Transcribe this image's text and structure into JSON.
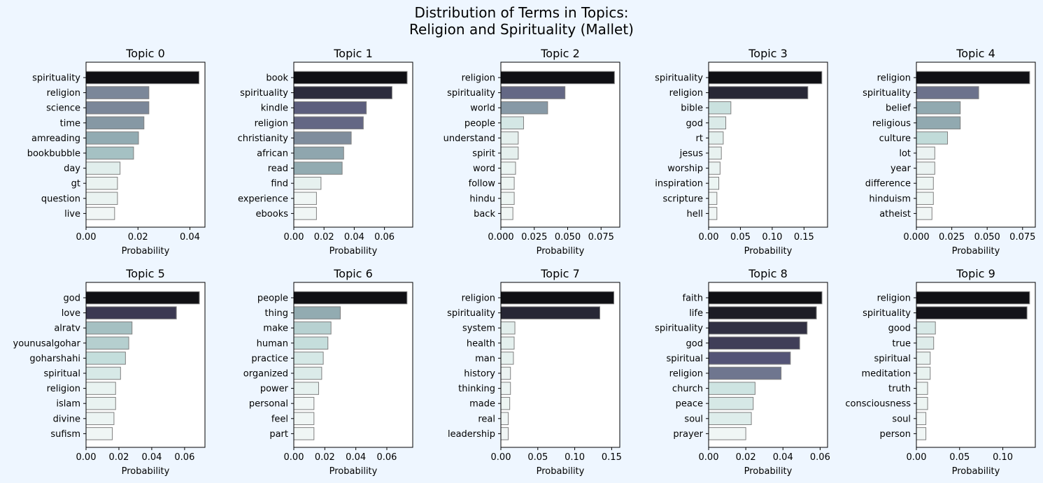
{
  "figure": {
    "title_line1": "Distribution of Terms in Topics:",
    "title_line2": "Religion and Spirituality (Mallet)",
    "background_color": "#eef6ff"
  },
  "chart_data": [
    {
      "type": "bar",
      "orientation": "horizontal",
      "title": "Topic 0",
      "xlabel": "Probability",
      "categories": [
        "spirituality",
        "religion",
        "science",
        "time",
        "amreading",
        "bookbubble",
        "day",
        "gt",
        "question",
        "live"
      ],
      "values": [
        0.0435,
        0.0242,
        0.0242,
        0.0223,
        0.0202,
        0.0183,
        0.0131,
        0.0121,
        0.0121,
        0.011
      ],
      "xlim": [
        0,
        0.0458
      ],
      "xticks": [
        0.0,
        0.02,
        0.04
      ],
      "xtick_labels": [
        "0.00",
        "0.02",
        "0.04"
      ]
    },
    {
      "type": "bar",
      "orientation": "horizontal",
      "title": "Topic 1",
      "xlabel": "Probability",
      "categories": [
        "book",
        "spirituality",
        "kindle",
        "religion",
        "christianity",
        "african",
        "read",
        "find",
        "experience",
        "ebooks"
      ],
      "values": [
        0.075,
        0.065,
        0.048,
        0.046,
        0.038,
        0.033,
        0.032,
        0.018,
        0.015,
        0.015
      ],
      "xlim": [
        0,
        0.0787
      ],
      "xticks": [
        0.0,
        0.02,
        0.04,
        0.06
      ],
      "xtick_labels": [
        "0.00",
        "0.02",
        "0.04",
        "0.06"
      ]
    },
    {
      "type": "bar",
      "orientation": "horizontal",
      "title": "Topic 2",
      "xlabel": "Probability",
      "categories": [
        "religion",
        "spirituality",
        "world",
        "people",
        "understand",
        "spirit",
        "word",
        "follow",
        "hindu",
        "back"
      ],
      "values": [
        0.085,
        0.048,
        0.035,
        0.017,
        0.013,
        0.013,
        0.011,
        0.01,
        0.01,
        0.009
      ],
      "xlim": [
        0,
        0.089
      ],
      "xticks": [
        0.0,
        0.025,
        0.05,
        0.075
      ],
      "xtick_labels": [
        "0.000",
        "0.025",
        "0.050",
        "0.075"
      ]
    },
    {
      "type": "bar",
      "orientation": "horizontal",
      "title": "Topic 3",
      "xlabel": "Probability",
      "categories": [
        "spirituality",
        "religion",
        "bible",
        "god",
        "rt",
        "jesus",
        "worship",
        "inspiration",
        "scripture",
        "hell"
      ],
      "values": [
        0.178,
        0.156,
        0.035,
        0.027,
        0.023,
        0.02,
        0.018,
        0.016,
        0.013,
        0.013
      ],
      "xlim": [
        0,
        0.187
      ],
      "xticks": [
        0.0,
        0.05,
        0.1,
        0.15
      ],
      "xtick_labels": [
        "0.00",
        "0.05",
        "0.10",
        "0.15"
      ]
    },
    {
      "type": "bar",
      "orientation": "horizontal",
      "title": "Topic 4",
      "xlabel": "Probability",
      "categories": [
        "religion",
        "spirituality",
        "belief",
        "religious",
        "culture",
        "lot",
        "year",
        "difference",
        "hinduism",
        "atheist"
      ],
      "values": [
        0.08,
        0.044,
        0.031,
        0.031,
        0.022,
        0.013,
        0.013,
        0.012,
        0.012,
        0.011
      ],
      "xlim": [
        0,
        0.084
      ],
      "xticks": [
        0.0,
        0.025,
        0.05,
        0.075
      ],
      "xtick_labels": [
        "0.000",
        "0.025",
        "0.050",
        "0.075"
      ]
    },
    {
      "type": "bar",
      "orientation": "horizontal",
      "title": "Topic 5",
      "xlabel": "Probability",
      "categories": [
        "god",
        "love",
        "alratv",
        "younusalgohar",
        "goharshahi",
        "spiritual",
        "religion",
        "islam",
        "divine",
        "sufism"
      ],
      "values": [
        0.069,
        0.055,
        0.028,
        0.026,
        0.024,
        0.021,
        0.018,
        0.018,
        0.017,
        0.016
      ],
      "xlim": [
        0,
        0.0724
      ],
      "xticks": [
        0.0,
        0.02,
        0.04,
        0.06
      ],
      "xtick_labels": [
        "0.00",
        "0.02",
        "0.04",
        "0.06"
      ]
    },
    {
      "type": "bar",
      "orientation": "horizontal",
      "title": "Topic 6",
      "xlabel": "Probability",
      "categories": [
        "people",
        "thing",
        "make",
        "human",
        "practice",
        "organized",
        "power",
        "personal",
        "feel",
        "part"
      ],
      "values": [
        0.073,
        0.03,
        0.024,
        0.022,
        0.019,
        0.018,
        0.016,
        0.013,
        0.013,
        0.013
      ],
      "xlim": [
        0,
        0.0767
      ],
      "xticks": [
        0.0,
        0.02,
        0.04,
        0.06
      ],
      "xtick_labels": [
        "0.00",
        "0.02",
        "0.04",
        "0.06"
      ]
    },
    {
      "type": "bar",
      "orientation": "horizontal",
      "title": "Topic 7",
      "xlabel": "Probability",
      "categories": [
        "religion",
        "spirituality",
        "system",
        "health",
        "man",
        "history",
        "thinking",
        "made",
        "real",
        "leadership"
      ],
      "values": [
        0.153,
        0.134,
        0.019,
        0.018,
        0.017,
        0.013,
        0.013,
        0.012,
        0.01,
        0.01
      ],
      "xlim": [
        0,
        0.161
      ],
      "xticks": [
        0.0,
        0.05,
        0.1,
        0.15
      ],
      "xtick_labels": [
        "0.00",
        "0.05",
        "0.10",
        "0.15"
      ]
    },
    {
      "type": "bar",
      "orientation": "horizontal",
      "title": "Topic 8",
      "xlabel": "Probability",
      "categories": [
        "faith",
        "life",
        "spirituality",
        "god",
        "spiritual",
        "religion",
        "church",
        "peace",
        "soul",
        "prayer"
      ],
      "values": [
        0.061,
        0.058,
        0.053,
        0.049,
        0.044,
        0.039,
        0.025,
        0.024,
        0.023,
        0.02
      ],
      "xlim": [
        0,
        0.064
      ],
      "xticks": [
        0.0,
        0.02,
        0.04,
        0.06
      ],
      "xtick_labels": [
        "0.00",
        "0.02",
        "0.04",
        "0.06"
      ]
    },
    {
      "type": "bar",
      "orientation": "horizontal",
      "title": "Topic 9",
      "xlabel": "Probability",
      "categories": [
        "religion",
        "spirituality",
        "good",
        "true",
        "spiritual",
        "meditation",
        "truth",
        "consciousness",
        "soul",
        "person"
      ],
      "values": [
        0.131,
        0.128,
        0.022,
        0.02,
        0.016,
        0.016,
        0.013,
        0.013,
        0.011,
        0.011
      ],
      "xlim": [
        0,
        0.1376
      ],
      "xticks": [
        0.0,
        0.05,
        0.1
      ],
      "xtick_labels": [
        "0.00",
        "0.05",
        "0.10"
      ]
    }
  ]
}
